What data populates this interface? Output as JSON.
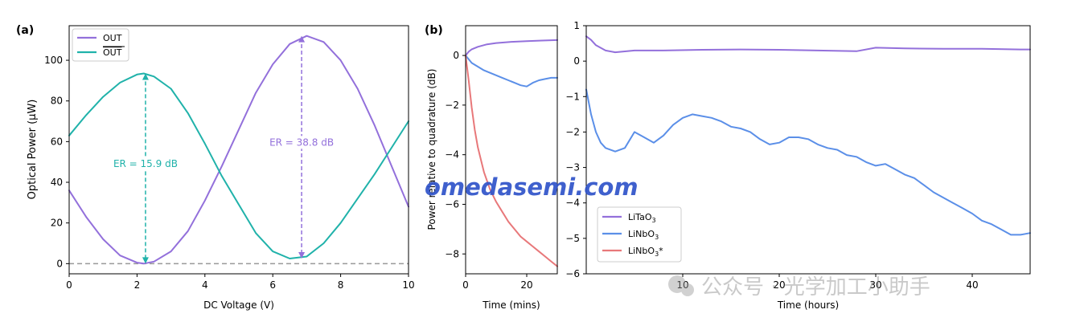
{
  "panels": {
    "a_label": "(a)",
    "b_label": "(b)"
  },
  "watermarks": {
    "site": "omedasemi.com",
    "wechat": "公众号 · 光学加工小助手"
  },
  "colors": {
    "purple": "#9370DB",
    "teal": "#20B2AA",
    "blue": "#5B8FE8",
    "red": "#E8787A",
    "gray": "#999999",
    "axis": "#000000"
  },
  "chart_data": [
    {
      "id": "a",
      "type": "line",
      "xlabel": "DC Voltage (V)",
      "ylabel": "Optical Power (μW)",
      "xlim": [
        0,
        10
      ],
      "ylim": [
        -5,
        117
      ],
      "xticks": [
        0,
        2,
        4,
        6,
        8,
        10
      ],
      "yticks": [
        0,
        20,
        40,
        60,
        80,
        100
      ],
      "legend": {
        "position": "top-left",
        "entries": [
          "OUT",
          "OUT"
        ]
      },
      "series": [
        {
          "name": "OUT",
          "color": "purple",
          "x": [
            0,
            0.5,
            1,
            1.5,
            2,
            2.2,
            2.5,
            3,
            3.5,
            4,
            4.5,
            5,
            5.5,
            6,
            6.5,
            7,
            7.5,
            8,
            8.5,
            9,
            9.5,
            10
          ],
          "y": [
            36,
            23,
            12,
            4,
            0.5,
            0,
            1,
            6,
            16,
            31,
            48,
            66,
            84,
            98,
            108,
            112,
            109,
            100,
            86,
            68,
            48,
            28
          ]
        },
        {
          "name": "OUT",
          "overline": true,
          "color": "teal",
          "x": [
            0,
            0.5,
            1,
            1.5,
            2,
            2.2,
            2.5,
            3,
            3.5,
            4,
            4.5,
            5,
            5.5,
            6,
            6.5,
            7,
            7.5,
            8,
            8.5,
            9,
            9.5,
            10
          ],
          "y": [
            63,
            73,
            82,
            89,
            93,
            93.5,
            92,
            86,
            74,
            59,
            43,
            29,
            15,
            6,
            2.5,
            3.5,
            10,
            20,
            32,
            44,
            57,
            70
          ]
        }
      ],
      "reference_line": {
        "y": 0,
        "style": "dashed",
        "color": "gray"
      },
      "annotations": [
        {
          "text": "ER = 15.9 dB",
          "x": 2.25,
          "y_from": 0,
          "y_to": 93.5,
          "color": "teal"
        },
        {
          "text": "ER = 38.8 dB",
          "x": 6.85,
          "y_from": 2.5,
          "y_to": 112,
          "color": "purple"
        }
      ]
    },
    {
      "id": "b-left",
      "type": "line",
      "xlabel": "Time (mins)",
      "ylabel": "Power relative to quadrature (dB)",
      "xlim": [
        0,
        30
      ],
      "ylim": [
        -8.8,
        1.2
      ],
      "xticks": [
        0,
        20
      ],
      "yticks": [
        0,
        -2,
        -4,
        -6,
        -8
      ],
      "series": [
        {
          "name": "LiTaO3",
          "color": "purple",
          "x": [
            0,
            1,
            2,
            4,
            7,
            10,
            15,
            20,
            25,
            30
          ],
          "y": [
            0,
            0.15,
            0.25,
            0.35,
            0.45,
            0.5,
            0.55,
            0.58,
            0.6,
            0.62
          ]
        },
        {
          "name": "LiNbO3",
          "color": "blue",
          "x": [
            0,
            2,
            4,
            6,
            8,
            10,
            12,
            14,
            16,
            18,
            20,
            22,
            24,
            26,
            28,
            30
          ],
          "y": [
            0,
            -0.3,
            -0.45,
            -0.6,
            -0.7,
            -0.8,
            -0.9,
            -1.0,
            -1.1,
            -1.2,
            -1.25,
            -1.1,
            -1.0,
            -0.95,
            -0.9,
            -0.9
          ]
        },
        {
          "name": "LiNbO3*",
          "color": "red",
          "x": [
            0,
            1,
            2,
            3,
            4,
            5,
            6,
            8,
            10,
            12,
            14,
            16,
            18,
            20,
            22,
            24,
            26,
            28,
            30
          ],
          "y": [
            0,
            -1.0,
            -2.1,
            -3.0,
            -3.7,
            -4.2,
            -4.7,
            -5.4,
            -5.9,
            -6.3,
            -6.7,
            -7.0,
            -7.3,
            -7.5,
            -7.7,
            -7.9,
            -8.1,
            -8.3,
            -8.5
          ]
        }
      ]
    },
    {
      "id": "b-right",
      "type": "line",
      "xlabel": "Time (hours)",
      "xlim": [
        0,
        46
      ],
      "ylim": [
        -6,
        1
      ],
      "xticks": [
        10,
        20,
        30,
        40
      ],
      "yticks": [
        1,
        0,
        -1,
        -2,
        -3,
        -4,
        -5,
        -6
      ],
      "legend": {
        "position": "bottom-left",
        "entries": [
          "LiTaO3",
          "LiNbO3",
          "LiNbO3*"
        ]
      },
      "series": [
        {
          "name": "LiTaO3",
          "color": "purple",
          "x": [
            0,
            0.5,
            1,
            2,
            3,
            5,
            8,
            12,
            16,
            20,
            24,
            28,
            30,
            33,
            37,
            41,
            45,
            46
          ],
          "y": [
            0.7,
            0.6,
            0.45,
            0.3,
            0.25,
            0.3,
            0.3,
            0.32,
            0.33,
            0.32,
            0.3,
            0.28,
            0.38,
            0.36,
            0.35,
            0.35,
            0.33,
            0.33
          ]
        },
        {
          "name": "LiNbO3",
          "color": "blue",
          "x": [
            0,
            0.5,
            1,
            1.5,
            2,
            3,
            4,
            5,
            6,
            7,
            8,
            9,
            10,
            11,
            12,
            13,
            14,
            15,
            16,
            17,
            18,
            19,
            20,
            21,
            22,
            23,
            24,
            25,
            26,
            27,
            28,
            29,
            30,
            31,
            32,
            33,
            34,
            35,
            36,
            37,
            38,
            39,
            40,
            41,
            42,
            43,
            44,
            45,
            46
          ],
          "y": [
            -0.8,
            -1.5,
            -2.0,
            -2.3,
            -2.45,
            -2.55,
            -2.45,
            -2.0,
            -2.15,
            -2.3,
            -2.1,
            -1.8,
            -1.6,
            -1.5,
            -1.55,
            -1.6,
            -1.7,
            -1.85,
            -1.9,
            -2.0,
            -2.2,
            -2.35,
            -2.3,
            -2.15,
            -2.15,
            -2.2,
            -2.35,
            -2.45,
            -2.5,
            -2.65,
            -2.7,
            -2.85,
            -2.95,
            -2.9,
            -3.05,
            -3.2,
            -3.3,
            -3.5,
            -3.7,
            -3.85,
            -4.0,
            -4.15,
            -4.3,
            -4.5,
            -4.6,
            -4.75,
            -4.9,
            -4.9,
            -4.85
          ]
        }
      ]
    }
  ]
}
